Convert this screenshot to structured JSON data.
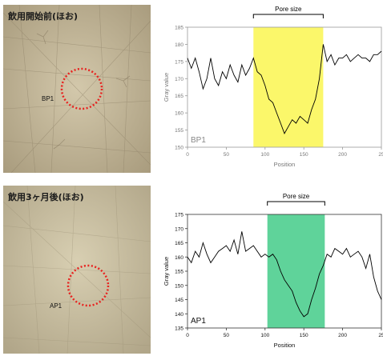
{
  "images": [
    {
      "title": "飲用開始前(ほお)",
      "marker_label": "BP1"
    },
    {
      "title": "飲用3ヶ月後(ほお)",
      "marker_label": "AP1"
    }
  ],
  "colors": {
    "marker_circle": "#e8221f",
    "highlight_1": "#fbf76a",
    "highlight_2": "#5fd39a",
    "line": "#000000",
    "skin_base_1": "#c4b89a",
    "skin_base_2": "#d0c6a8"
  },
  "chart_data": [
    {
      "type": "line",
      "panel_label": "BP1",
      "bracket_label": "Pore size",
      "highlight_x": [
        85,
        175
      ],
      "xlabel": "Position",
      "ylabel": "Gray value",
      "xlim": [
        0,
        250
      ],
      "ylim": [
        150,
        185
      ],
      "xticks": [
        "0",
        "50",
        "100",
        "150",
        "200",
        "25"
      ],
      "yticks": [
        "150",
        "155",
        "160",
        "165",
        "170",
        "175",
        "180",
        "185"
      ],
      "x": [
        0,
        5,
        10,
        15,
        20,
        25,
        30,
        35,
        40,
        45,
        50,
        55,
        60,
        65,
        70,
        75,
        80,
        85,
        90,
        95,
        100,
        105,
        110,
        115,
        120,
        125,
        130,
        135,
        140,
        145,
        150,
        155,
        160,
        165,
        170,
        175,
        180,
        185,
        190,
        195,
        200,
        205,
        210,
        215,
        220,
        225,
        230,
        235,
        240,
        245,
        250
      ],
      "y": [
        176,
        173,
        176,
        172,
        167,
        170,
        176,
        170,
        168,
        172,
        170,
        174,
        171,
        169,
        174,
        171,
        173,
        176,
        172,
        171,
        168,
        164,
        163,
        160,
        157,
        154,
        156,
        158,
        157,
        159,
        158,
        157,
        161,
        164,
        170,
        180,
        175,
        177,
        174,
        176,
        176,
        177,
        175,
        176,
        177,
        176,
        176,
        175,
        177,
        177,
        178
      ]
    },
    {
      "type": "line",
      "panel_label": "AP1",
      "bracket_label": "Pore size",
      "highlight_x": [
        103,
        177
      ],
      "xlabel": "Position",
      "ylabel": "Gray value",
      "xlim": [
        0,
        250
      ],
      "ylim": [
        135,
        175
      ],
      "xticks": [
        "0",
        "50",
        "100",
        "150",
        "200",
        "25"
      ],
      "yticks": [
        "135",
        "140",
        "145",
        "150",
        "155",
        "160",
        "165",
        "170",
        "175"
      ],
      "x": [
        0,
        5,
        10,
        15,
        20,
        25,
        30,
        35,
        40,
        45,
        50,
        55,
        60,
        65,
        70,
        75,
        80,
        85,
        90,
        95,
        100,
        105,
        110,
        115,
        120,
        125,
        130,
        135,
        140,
        145,
        150,
        155,
        160,
        165,
        170,
        175,
        180,
        185,
        190,
        195,
        200,
        205,
        210,
        215,
        220,
        225,
        230,
        235,
        240,
        245,
        250
      ],
      "y": [
        160,
        158,
        162,
        160,
        165,
        161,
        158,
        160,
        162,
        163,
        164,
        162,
        166,
        161,
        169,
        162,
        163,
        164,
        162,
        160,
        161,
        160,
        161,
        159,
        155,
        152,
        150,
        148,
        144,
        141,
        139,
        140,
        145,
        149,
        154,
        157,
        161,
        160,
        163,
        162,
        161,
        163,
        160,
        161,
        162,
        160,
        156,
        161,
        153,
        148,
        145
      ]
    }
  ]
}
